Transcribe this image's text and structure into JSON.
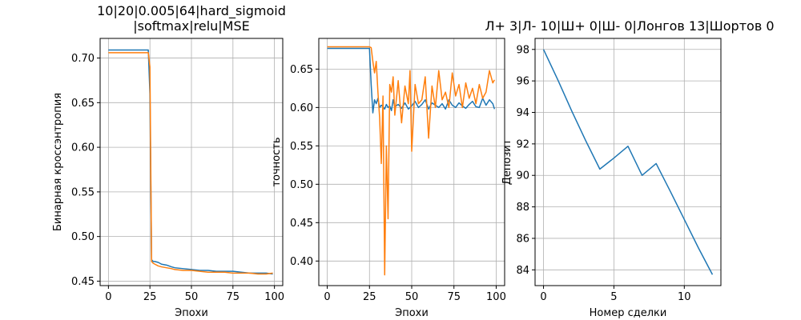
{
  "colors": {
    "series_1": "#1f77b4",
    "series_2": "#ff7f0e",
    "grid": "#b0b0b0"
  },
  "chart_data": [
    {
      "type": "line",
      "title_lines": [
        "10|20|0.005|64|hard_sigmoid",
        "|softmax|relu|MSE"
      ],
      "xlabel": "Эпохи",
      "ylabel": "Бинарная кроссэнтропия",
      "xlim": [
        -5,
        105
      ],
      "ylim": [
        0.445,
        0.722
      ],
      "grid": true,
      "xticks": [
        0,
        25,
        50,
        75,
        100
      ],
      "yticks": [
        0.45,
        0.5,
        0.55,
        0.6,
        0.65,
        0.7
      ],
      "ytick_labels": [
        "0.45",
        "0.50",
        "0.55",
        "0.60",
        "0.65",
        "0.70"
      ],
      "series": [
        {
          "color": "#1f77b4",
          "x": [
            0,
            5,
            10,
            15,
            20,
            24,
            25,
            26,
            27,
            28,
            30,
            32,
            35,
            38,
            40,
            45,
            50,
            55,
            60,
            65,
            70,
            75,
            80,
            85,
            90,
            95,
            99
          ],
          "y": [
            0.709,
            0.709,
            0.709,
            0.709,
            0.709,
            0.709,
            0.66,
            0.474,
            0.472,
            0.472,
            0.471,
            0.469,
            0.468,
            0.466,
            0.465,
            0.464,
            0.463,
            0.462,
            0.462,
            0.461,
            0.461,
            0.461,
            0.46,
            0.459,
            0.459,
            0.459,
            0.458
          ]
        },
        {
          "color": "#ff7f0e",
          "x": [
            0,
            5,
            10,
            15,
            20,
            24,
            25,
            26,
            27,
            28,
            30,
            32,
            35,
            38,
            40,
            45,
            50,
            55,
            60,
            65,
            70,
            75,
            80,
            85,
            90,
            95,
            99
          ],
          "y": [
            0.706,
            0.706,
            0.706,
            0.706,
            0.706,
            0.706,
            0.69,
            0.472,
            0.47,
            0.469,
            0.467,
            0.466,
            0.465,
            0.464,
            0.463,
            0.462,
            0.462,
            0.461,
            0.46,
            0.46,
            0.46,
            0.459,
            0.459,
            0.459,
            0.458,
            0.458,
            0.459
          ]
        }
      ]
    },
    {
      "type": "line",
      "title_lines": [],
      "xlabel": "Эпохи",
      "ylabel": "точность",
      "xlim": [
        -5,
        105
      ],
      "ylim": [
        0.368,
        0.69
      ],
      "grid": true,
      "xticks": [
        0,
        25,
        50,
        75,
        100
      ],
      "yticks": [
        0.4,
        0.45,
        0.5,
        0.55,
        0.6,
        0.65
      ],
      "ytick_labels": [
        "0.40",
        "0.45",
        "0.50",
        "0.55",
        "0.60",
        "0.65"
      ],
      "series": [
        {
          "color": "#1f77b4",
          "x": [
            0,
            5,
            10,
            15,
            20,
            25,
            26,
            27,
            28,
            29,
            30,
            31,
            32,
            33,
            34,
            35,
            36,
            37,
            38,
            39,
            40,
            42,
            44,
            46,
            48,
            50,
            52,
            54,
            56,
            58,
            60,
            62,
            64,
            66,
            68,
            70,
            72,
            74,
            76,
            78,
            80,
            82,
            84,
            86,
            88,
            90,
            92,
            94,
            96,
            98,
            99
          ],
          "y": [
            0.677,
            0.677,
            0.677,
            0.677,
            0.677,
            0.677,
            0.63,
            0.593,
            0.61,
            0.605,
            0.612,
            0.6,
            0.603,
            0.601,
            0.598,
            0.604,
            0.6,
            0.602,
            0.596,
            0.61,
            0.601,
            0.604,
            0.599,
            0.606,
            0.598,
            0.602,
            0.608,
            0.6,
            0.604,
            0.61,
            0.598,
            0.606,
            0.603,
            0.6,
            0.605,
            0.598,
            0.61,
            0.603,
            0.6,
            0.606,
            0.602,
            0.599,
            0.604,
            0.608,
            0.601,
            0.6,
            0.612,
            0.603,
            0.61,
            0.605,
            0.598
          ]
        },
        {
          "color": "#ff7f0e",
          "x": [
            0,
            5,
            10,
            15,
            20,
            25,
            26,
            27,
            28,
            29,
            30,
            31,
            32,
            33,
            34,
            35,
            36,
            37,
            38,
            39,
            40,
            42,
            44,
            46,
            48,
            49,
            50,
            52,
            54,
            56,
            58,
            60,
            62,
            64,
            66,
            68,
            70,
            72,
            74,
            76,
            78,
            80,
            82,
            84,
            86,
            88,
            90,
            92,
            94,
            96,
            98,
            99
          ],
          "y": [
            0.679,
            0.679,
            0.679,
            0.679,
            0.679,
            0.679,
            0.678,
            0.66,
            0.645,
            0.66,
            0.62,
            0.587,
            0.527,
            0.615,
            0.382,
            0.55,
            0.455,
            0.63,
            0.62,
            0.64,
            0.59,
            0.635,
            0.58,
            0.628,
            0.605,
            0.648,
            0.543,
            0.63,
            0.605,
            0.61,
            0.64,
            0.56,
            0.628,
            0.6,
            0.648,
            0.61,
            0.62,
            0.6,
            0.645,
            0.615,
            0.63,
            0.6,
            0.632,
            0.612,
            0.625,
            0.605,
            0.63,
            0.612,
            0.62,
            0.648,
            0.632,
            0.636
          ]
        }
      ]
    },
    {
      "type": "line",
      "title_lines": [
        "Л+ 3|Л- 10|Ш+ 0|Ш- 0|Лонгов 13|Шортов 0"
      ],
      "xlabel": "Номер сделки",
      "ylabel": "Депозит",
      "xlim": [
        -0.6,
        12.6
      ],
      "ylim": [
        83.0,
        98.7
      ],
      "grid": true,
      "xticks": [
        0,
        5,
        10
      ],
      "yticks": [
        84,
        86,
        88,
        90,
        92,
        94,
        96,
        98
      ],
      "ytick_labels": [
        "84",
        "86",
        "88",
        "90",
        "92",
        "94",
        "96",
        "98"
      ],
      "series": [
        {
          "color": "#1f77b4",
          "x": [
            0,
            1,
            2,
            3,
            4,
            5,
            6,
            7,
            8,
            9,
            10,
            11,
            12
          ],
          "y": [
            98.0,
            96.1,
            94.1,
            92.2,
            90.4,
            91.1,
            91.85,
            90.0,
            90.75,
            89.0,
            87.2,
            85.4,
            83.7
          ]
        }
      ]
    }
  ]
}
